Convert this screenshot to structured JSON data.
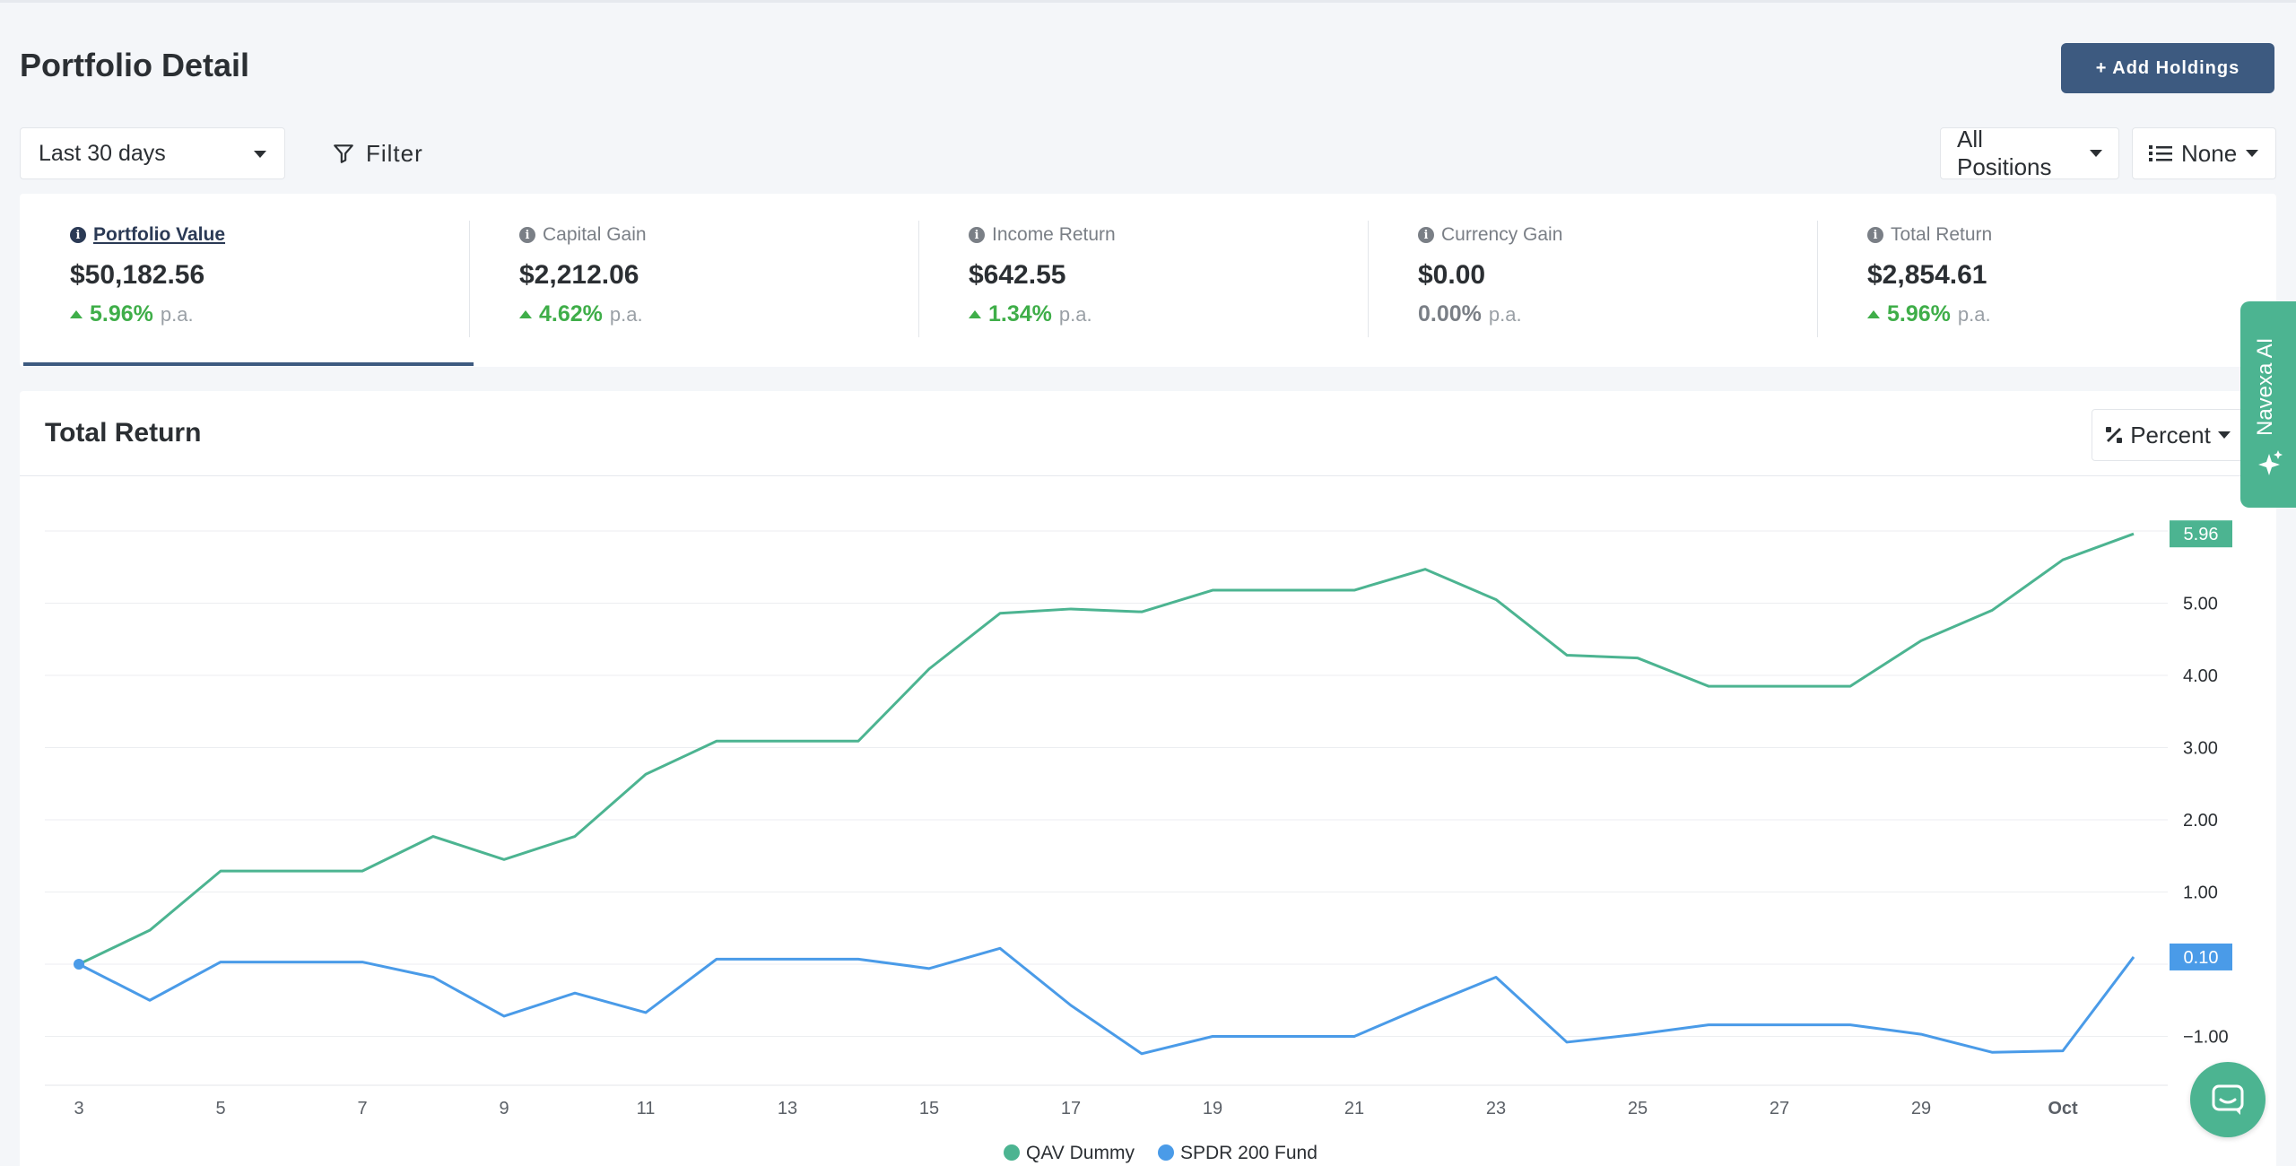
{
  "header": {
    "title": "Portfolio Detail",
    "add_holdings_label": "+ Add Holdings"
  },
  "toolbar": {
    "date_range": "Last 30 days",
    "filter_label": "Filter",
    "positions_label": "All Positions",
    "group_label": "None"
  },
  "summary": {
    "items": [
      {
        "label": "Portfolio Value",
        "value": "$50,182.56",
        "change": "5.96%",
        "suffix": "p.a."
      },
      {
        "label": "Capital Gain",
        "value": "$2,212.06",
        "change": "4.62%",
        "suffix": "p.a."
      },
      {
        "label": "Income Return",
        "value": "$642.55",
        "change": "1.34%",
        "suffix": "p.a."
      },
      {
        "label": "Currency Gain",
        "value": "$0.00",
        "change": "0.00%",
        "suffix": "p.a."
      },
      {
        "label": "Total Return",
        "value": "$2,854.61",
        "change": "5.96%",
        "suffix": "p.a."
      }
    ]
  },
  "chart": {
    "title": "Total Return",
    "mode_label": "Percent"
  },
  "side_panel": {
    "label": "Navexa AI"
  },
  "colors": {
    "accent": "#3d5a80",
    "series_green": "#4cb491",
    "series_blue": "#4a9be8",
    "positive": "#3fae49"
  },
  "chart_data": {
    "type": "line",
    "x": [
      "Sep 3",
      "Sep 4",
      "Sep 5",
      "Sep 6",
      "Sep 7",
      "Sep 8",
      "Sep 9",
      "Sep 10",
      "Sep 11",
      "Sep 12",
      "Sep 13",
      "Sep 14",
      "Sep 15",
      "Sep 16",
      "Sep 17",
      "Sep 18",
      "Sep 19",
      "Sep 20",
      "Sep 21",
      "Sep 22",
      "Sep 23",
      "Sep 24",
      "Sep 25",
      "Sep 26",
      "Sep 27",
      "Sep 28",
      "Sep 29",
      "Sep 30",
      "Oct 1",
      "Oct 2"
    ],
    "x_tick_labels": [
      "3",
      "5",
      "7",
      "9",
      "11",
      "13",
      "15",
      "17",
      "19",
      "21",
      "23",
      "25",
      "27",
      "29",
      "Oct"
    ],
    "y_tick_labels": [
      "5.00",
      "4.00",
      "3.00",
      "2.00",
      "1.00",
      "−1.00"
    ],
    "series": [
      {
        "name": "QAV Dummy",
        "values": [
          0.0,
          0.47,
          1.29,
          1.29,
          1.29,
          1.77,
          1.45,
          1.77,
          2.63,
          3.09,
          3.09,
          3.09,
          4.09,
          4.86,
          4.92,
          4.88,
          5.18,
          5.18,
          5.18,
          5.47,
          5.05,
          4.28,
          4.24,
          3.85,
          3.85,
          3.85,
          4.48,
          4.9,
          5.6,
          5.96
        ]
      },
      {
        "name": "SPDR 200 Fund",
        "values": [
          0.0,
          -0.5,
          0.03,
          0.03,
          0.03,
          -0.18,
          -0.72,
          -0.4,
          -0.67,
          0.07,
          0.07,
          0.07,
          -0.06,
          0.22,
          -0.57,
          -1.24,
          -1.0,
          -1.0,
          -1.0,
          -0.58,
          -0.18,
          -1.08,
          -0.97,
          -0.84,
          -0.84,
          -0.84,
          -0.97,
          -1.22,
          -1.2,
          0.1
        ]
      }
    ],
    "end_labels": [
      "5.96",
      "0.10"
    ],
    "ylim": [
      -1.7,
      6.0
    ],
    "grid": true,
    "legend": "bottom-center"
  }
}
